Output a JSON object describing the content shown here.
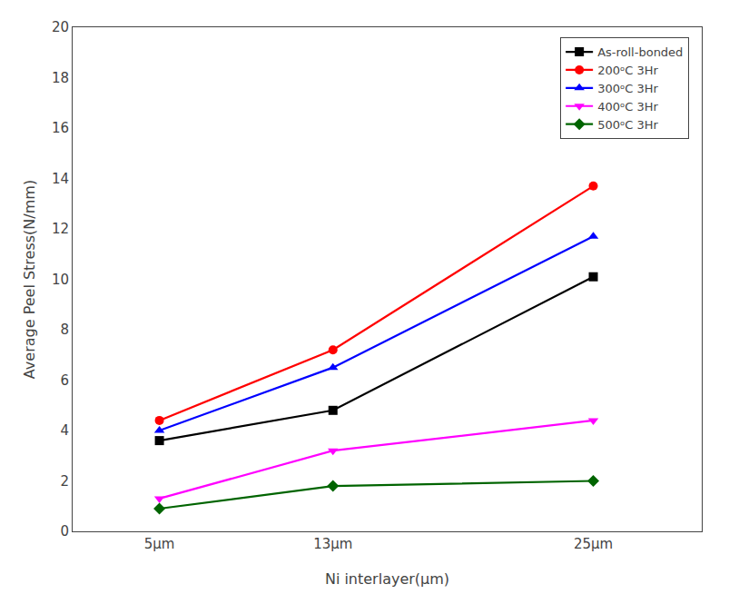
{
  "chart_data": {
    "type": "line",
    "x": [
      5,
      13,
      25
    ],
    "series": [
      {
        "name": "As-roll-bonded",
        "color": "#000000",
        "marker": "square",
        "values": [
          3.6,
          4.8,
          10.1
        ]
      },
      {
        "name": "200ᵒC 3Hr",
        "color": "#ff0000",
        "marker": "circle",
        "values": [
          4.4,
          7.2,
          13.7
        ]
      },
      {
        "name": "300ᵒC 3Hr",
        "color": "#0000ff",
        "marker": "triangle-up",
        "values": [
          4.0,
          6.5,
          11.7
        ]
      },
      {
        "name": "400ᵒC 3Hr",
        "color": "#ff00ff",
        "marker": "triangle-down",
        "values": [
          1.3,
          3.2,
          4.4
        ]
      },
      {
        "name": "500ᵒC 3Hr",
        "color": "#006400",
        "marker": "diamond",
        "values": [
          0.9,
          1.8,
          2.0
        ]
      }
    ],
    "xlabel": "Ni interlayer(μm)",
    "ylabel": "Average Peel Stress(N/mm)",
    "xlim": [
      1,
      30
    ],
    "xticks": [
      {
        "value": 5,
        "label": "5μm"
      },
      {
        "value": 13,
        "label": "13μm"
      },
      {
        "value": 25,
        "label": "25μm"
      }
    ],
    "ylim": [
      0,
      20
    ],
    "yticks": [
      0,
      2,
      4,
      6,
      8,
      10,
      12,
      14,
      16,
      18,
      20
    ],
    "grid": false,
    "legend": "upper right"
  }
}
